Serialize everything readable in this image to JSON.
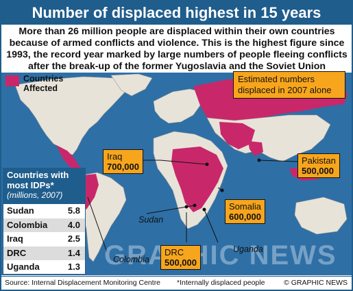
{
  "title": "Number of displaced highest in 15 years",
  "intro": "More than 26 million people are displaced within their own countries because of armed conflicts and violence. This is the highest figure since 1993, the record year marked by large numbers of people fleeing conflicts after the break-up of the former Yugoslavia and the Soviet Union",
  "legend": {
    "label": "Countries Affected",
    "color": "#c8286a"
  },
  "estimate_box": "Estimated numbers displaced in 2007 alone",
  "callouts": [
    {
      "country": "Iraq",
      "value": "700,000"
    },
    {
      "country": "Pakistan",
      "value": "500,000"
    },
    {
      "country": "Somalia",
      "value": "600,000"
    },
    {
      "country": "DRC",
      "value": "500,000"
    }
  ],
  "map_labels": [
    "Sudan",
    "Uganda",
    "Colombia"
  ],
  "idp_table": {
    "title": "Countries with most IDPs*",
    "subtitle": "(millions, 2007)",
    "rows": [
      {
        "country": "Sudan",
        "value": "5.8"
      },
      {
        "country": "Colombia",
        "value": "4.0"
      },
      {
        "country": "Iraq",
        "value": "2.5"
      },
      {
        "country": "DRC",
        "value": "1.4"
      },
      {
        "country": "Uganda",
        "value": "1.3"
      }
    ]
  },
  "watermark": "GRAPHIC NEWS",
  "footer": {
    "source": "Source: Internal Displacement Monitoring Centre",
    "note": "*Internally displaced people",
    "copyright": "© GRAPHIC NEWS"
  },
  "colors": {
    "title_bg": "#1f5d8c",
    "ocean": "#2e6fa6",
    "land": "#e8e3d8",
    "affected": "#c8286a",
    "callout": "#f7a51c"
  }
}
